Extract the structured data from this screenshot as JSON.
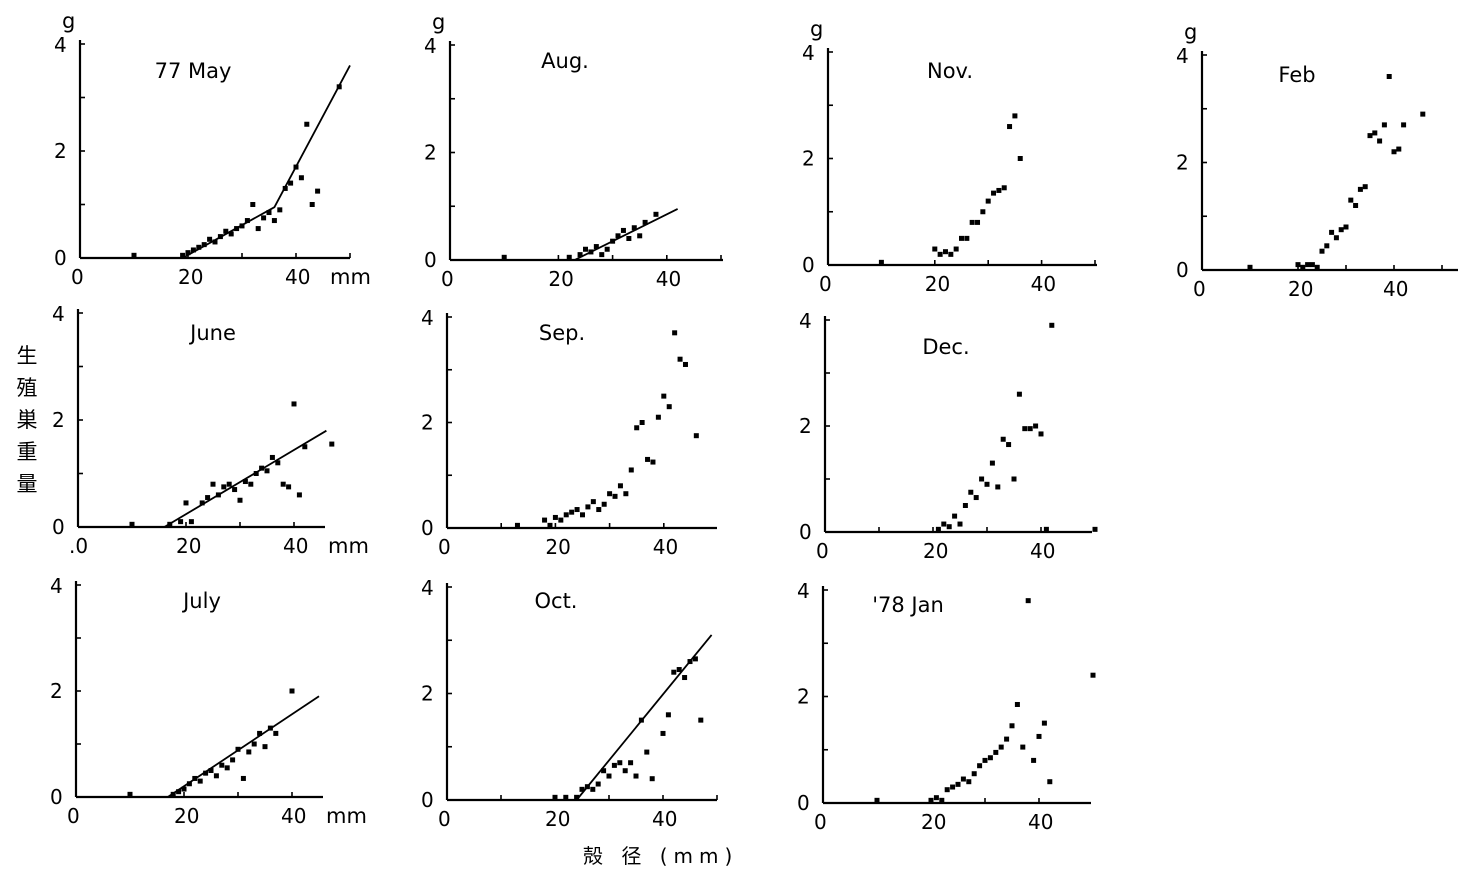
{
  "ylabel_chars": [
    "生",
    "殖",
    "巣",
    "重",
    "量"
  ],
  "xlabel": "殻 径 (mm)",
  "chart_data": [
    {
      "type": "scatter",
      "title": "77 May",
      "xlabel": "",
      "ylabel": "",
      "unit_y": "g",
      "unit_x": "mm",
      "xticks": [
        "0",
        "20",
        "40"
      ],
      "yticks": [
        "0",
        "2",
        "4"
      ],
      "xlim": [
        0,
        50
      ],
      "ylim": [
        0,
        4
      ],
      "x": [
        10,
        19,
        20,
        21,
        22,
        23,
        24,
        25,
        26,
        27,
        28,
        29,
        30,
        31,
        32,
        33,
        34,
        35,
        36,
        37,
        38,
        39,
        40,
        41,
        42,
        43,
        44,
        48
      ],
      "y": [
        0.05,
        0.05,
        0.1,
        0.15,
        0.2,
        0.25,
        0.35,
        0.3,
        0.4,
        0.5,
        0.45,
        0.55,
        0.6,
        0.7,
        1.0,
        0.55,
        0.75,
        0.85,
        0.7,
        0.9,
        1.3,
        1.4,
        1.7,
        1.5,
        2.5,
        1.0,
        1.25,
        3.2
      ],
      "fit": [
        [
          19,
          0.0
        ],
        [
          36,
          0.95
        ],
        [
          50,
          3.6
        ]
      ]
    },
    {
      "type": "scatter",
      "title": "Aug.",
      "xlabel": "",
      "ylabel": "",
      "unit_y": "g",
      "unit_x": "",
      "xticks": [
        "0",
        "20",
        "40"
      ],
      "yticks": [
        "0",
        "2",
        "4"
      ],
      "xlim": [
        0,
        50
      ],
      "ylim": [
        0,
        4
      ],
      "x": [
        10,
        22,
        24,
        25,
        26,
        27,
        28,
        29,
        30,
        31,
        32,
        33,
        34,
        35,
        36,
        38
      ],
      "y": [
        0.05,
        0.05,
        0.1,
        0.2,
        0.15,
        0.25,
        0.1,
        0.2,
        0.35,
        0.45,
        0.55,
        0.4,
        0.6,
        0.45,
        0.7,
        0.85
      ],
      "fit": [
        [
          23,
          0.0
        ],
        [
          42,
          0.95
        ]
      ]
    },
    {
      "type": "scatter",
      "title": "Nov.",
      "xlabel": "",
      "ylabel": "",
      "unit_y": "g",
      "unit_x": "",
      "xticks": [
        "0",
        "20",
        "40"
      ],
      "yticks": [
        "0",
        "2",
        "4"
      ],
      "xlim": [
        0,
        50
      ],
      "ylim": [
        0,
        4
      ],
      "x": [
        10,
        20,
        21,
        22,
        23,
        24,
        25,
        26,
        27,
        28,
        29,
        30,
        31,
        32,
        33,
        34,
        35,
        36
      ],
      "y": [
        0.05,
        0.3,
        0.2,
        0.25,
        0.2,
        0.3,
        0.5,
        0.5,
        0.8,
        0.8,
        1.0,
        1.2,
        1.35,
        1.4,
        1.45,
        2.6,
        2.8,
        2.0
      ],
      "fit": []
    },
    {
      "type": "scatter",
      "title": "Feb",
      "xlabel": "",
      "ylabel": "",
      "unit_y": "g",
      "unit_x": "",
      "xticks": [
        "0",
        "20",
        "40"
      ],
      "yticks": [
        "0",
        "2",
        "4"
      ],
      "xlim": [
        0,
        48
      ],
      "ylim": [
        0,
        4
      ],
      "x": [
        10,
        20,
        21,
        22,
        23,
        24,
        25,
        26,
        27,
        28,
        29,
        30,
        31,
        32,
        33,
        34,
        35,
        36,
        37,
        38,
        39,
        40,
        41,
        42,
        46
      ],
      "y": [
        0.05,
        0.1,
        0.05,
        0.1,
        0.1,
        0.05,
        0.35,
        0.45,
        0.7,
        0.6,
        0.75,
        0.8,
        1.3,
        1.2,
        1.5,
        1.55,
        2.5,
        2.55,
        2.4,
        2.7,
        3.6,
        2.2,
        2.25,
        2.7,
        2.9
      ],
      "fit": []
    },
    {
      "type": "scatter",
      "title": "June",
      "xlabel": "",
      "ylabel": "",
      "unit_y": "",
      "unit_x": "mm",
      "xticks": ".0|20|40",
      "yticks": [
        "0",
        "2",
        "4"
      ],
      "xlim": [
        0,
        50
      ],
      "ylim": [
        0,
        4
      ],
      "x": [
        10,
        17,
        19,
        20,
        21,
        23,
        24,
        25,
        26,
        27,
        28,
        29,
        30,
        31,
        32,
        33,
        34,
        35,
        36,
        37,
        38,
        39,
        40,
        41,
        42,
        47
      ],
      "y": [
        0.05,
        0.05,
        0.1,
        0.45,
        0.1,
        0.45,
        0.55,
        0.8,
        0.6,
        0.75,
        0.8,
        0.7,
        0.5,
        0.85,
        0.8,
        1.0,
        1.1,
        1.05,
        1.3,
        1.2,
        0.8,
        0.75,
        2.3,
        0.6,
        1.5,
        1.55
      ],
      "fit": [
        [
          16,
          0.0
        ],
        [
          46,
          1.8
        ]
      ]
    },
    {
      "type": "scatter",
      "title": "Sep.",
      "xlabel": "",
      "ylabel": "",
      "unit_y": "",
      "unit_x": "",
      "xticks": [
        "0",
        "20",
        "40"
      ],
      "yticks": [
        "0",
        "2",
        "4"
      ],
      "xlim": [
        0,
        50
      ],
      "ylim": [
        0,
        4
      ],
      "x": [
        13,
        18,
        19,
        20,
        21,
        22,
        23,
        24,
        25,
        26,
        27,
        28,
        29,
        30,
        31,
        32,
        33,
        34,
        35,
        36,
        37,
        38,
        39,
        40,
        41,
        42,
        43,
        44,
        46
      ],
      "y": [
        0.05,
        0.15,
        0.05,
        0.2,
        0.15,
        0.25,
        0.3,
        0.35,
        0.25,
        0.4,
        0.5,
        0.35,
        0.45,
        0.65,
        0.6,
        0.8,
        0.65,
        1.1,
        1.9,
        2.0,
        1.3,
        1.25,
        2.1,
        2.5,
        2.3,
        3.7,
        3.2,
        3.1,
        1.75
      ],
      "fit": []
    },
    {
      "type": "scatter",
      "title": "Dec.",
      "xlabel": "",
      "ylabel": "",
      "unit_y": "",
      "unit_x": "",
      "xticks": [
        "0",
        "20",
        "40"
      ],
      "yticks": [
        "0",
        "2",
        "4"
      ],
      "xlim": [
        0,
        50
      ],
      "ylim": [
        0,
        4
      ],
      "x": [
        21,
        22,
        23,
        24,
        25,
        26,
        27,
        28,
        29,
        30,
        31,
        32,
        33,
        34,
        35,
        36,
        37,
        38,
        39,
        40,
        41,
        42,
        50
      ],
      "y": [
        0.05,
        0.15,
        0.1,
        0.3,
        0.15,
        0.5,
        0.75,
        0.65,
        1.0,
        0.9,
        1.3,
        0.85,
        1.75,
        1.65,
        1.0,
        2.6,
        1.95,
        1.95,
        2.0,
        1.85,
        0.05,
        3.9,
        0.05
      ],
      "fit": []
    },
    {
      "type": "scatter",
      "title": "July",
      "xlabel": "",
      "ylabel": "",
      "unit_y": "",
      "unit_x": "mm",
      "xticks": [
        "0",
        "20",
        "40"
      ],
      "yticks": [
        "0",
        "2",
        "4"
      ],
      "xlim": [
        0,
        50
      ],
      "ylim": [
        0,
        4
      ],
      "x": [
        10,
        18,
        19,
        20,
        21,
        22,
        23,
        24,
        25,
        26,
        27,
        28,
        29,
        30,
        31,
        32,
        33,
        34,
        35,
        36,
        37,
        40
      ],
      "y": [
        0.05,
        0.05,
        0.1,
        0.15,
        0.25,
        0.35,
        0.3,
        0.45,
        0.5,
        0.4,
        0.6,
        0.55,
        0.7,
        0.9,
        0.35,
        0.85,
        1.0,
        1.2,
        0.95,
        1.3,
        1.2,
        2.0
      ],
      "fit": [
        [
          17,
          0.0
        ],
        [
          45,
          1.9
        ]
      ]
    },
    {
      "type": "scatter",
      "title": "Oct.",
      "xlabel": "",
      "ylabel": "",
      "unit_y": "",
      "unit_x": "",
      "xticks": [
        "0",
        "20",
        "40"
      ],
      "yticks": [
        "0",
        "2",
        "4"
      ],
      "xlim": [
        0,
        50
      ],
      "ylim": [
        0,
        4
      ],
      "x": [
        20,
        22,
        24,
        25,
        26,
        27,
        28,
        29,
        30,
        31,
        32,
        33,
        34,
        35,
        36,
        37,
        38,
        40,
        41,
        42,
        43,
        44,
        45,
        46,
        47
      ],
      "y": [
        0.05,
        0.05,
        0.05,
        0.2,
        0.25,
        0.2,
        0.3,
        0.55,
        0.45,
        0.65,
        0.7,
        0.55,
        0.7,
        0.45,
        1.5,
        0.9,
        0.4,
        1.25,
        1.6,
        2.4,
        2.45,
        2.3,
        2.6,
        2.65,
        1.5
      ],
      "fit": [
        [
          24,
          0.0
        ],
        [
          49,
          3.1
        ]
      ]
    },
    {
      "type": "scatter",
      "title": "'78 Jan",
      "xlabel": "",
      "ylabel": "",
      "unit_y": "",
      "unit_x": "",
      "xticks": [
        "0",
        "20",
        "40"
      ],
      "yticks": [
        "0",
        "2",
        "4"
      ],
      "xlim": [
        0,
        50
      ],
      "ylim": [
        0,
        4
      ],
      "x": [
        10,
        20,
        21,
        22,
        23,
        24,
        25,
        26,
        27,
        28,
        29,
        30,
        31,
        32,
        33,
        34,
        35,
        36,
        37,
        38,
        39,
        40,
        41,
        42,
        50
      ],
      "y": [
        0.05,
        0.05,
        0.1,
        0.05,
        0.25,
        0.3,
        0.35,
        0.45,
        0.4,
        0.55,
        0.7,
        0.8,
        0.85,
        0.95,
        1.05,
        1.2,
        1.45,
        1.85,
        1.05,
        3.8,
        0.8,
        1.25,
        1.5,
        0.4,
        2.4
      ],
      "fit": []
    }
  ]
}
